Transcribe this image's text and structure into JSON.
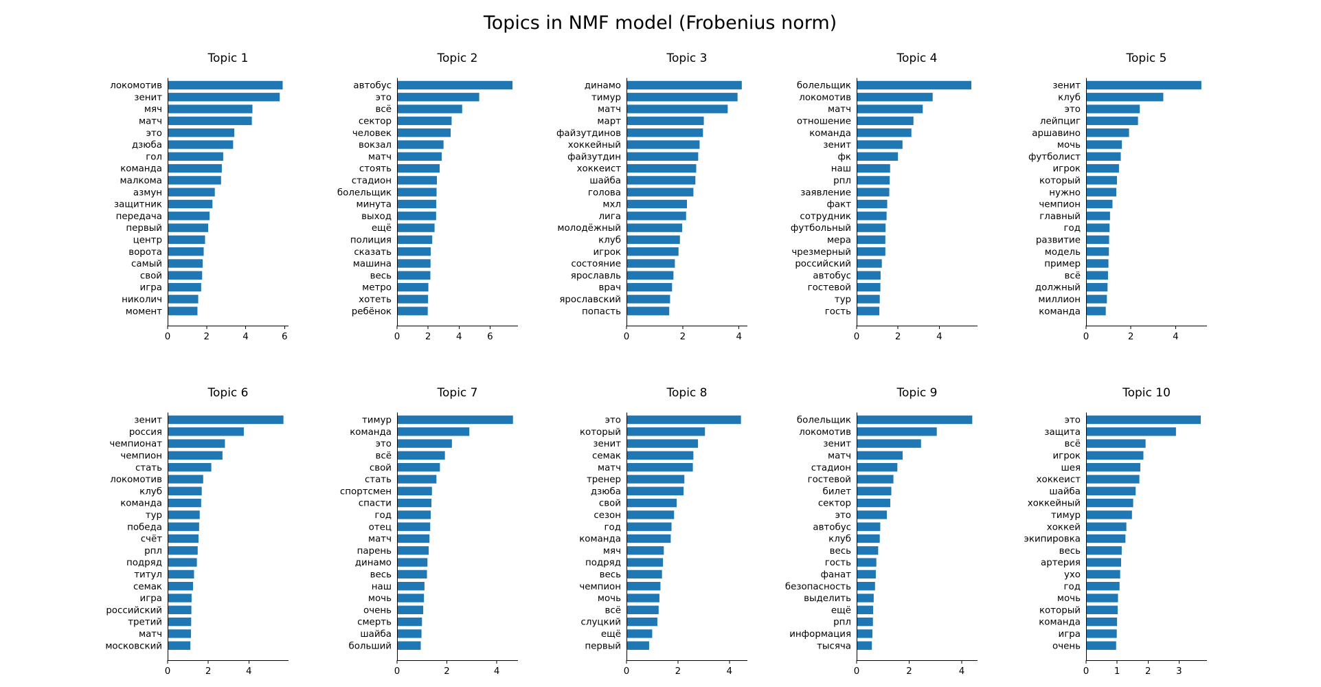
{
  "chart_data": {
    "title": "Topics in NMF model (Frobenius norm)",
    "type": "bar",
    "panels": [
      {
        "title": "Topic 1",
        "xticks": [
          0,
          2,
          4,
          6
        ],
        "xmax": 6.2,
        "words": [
          "локомотив",
          "зенит",
          "мяч",
          "матч",
          "это",
          "дзюба",
          "гол",
          "команда",
          "малкома",
          "азмун",
          "защитник",
          "передача",
          "первый",
          "центр",
          "ворота",
          "самый",
          "свой",
          "игра",
          "николич",
          "момент"
        ],
        "values": [
          5.9,
          5.75,
          4.35,
          4.32,
          3.42,
          3.36,
          2.85,
          2.78,
          2.74,
          2.42,
          2.3,
          2.15,
          2.08,
          1.92,
          1.85,
          1.8,
          1.77,
          1.72,
          1.57,
          1.53
        ]
      },
      {
        "title": "Topic 2",
        "xticks": [
          0,
          2,
          4,
          6
        ],
        "xmax": 7.8,
        "words": [
          "автобус",
          "это",
          "всё",
          "сектор",
          "человек",
          "вокзал",
          "матч",
          "стоять",
          "стадион",
          "болельщик",
          "минута",
          "выход",
          "ещё",
          "полиция",
          "сказать",
          "машина",
          "весь",
          "метро",
          "хотеть",
          "ребёнок"
        ],
        "values": [
          7.45,
          5.3,
          4.2,
          3.52,
          3.46,
          3.0,
          2.88,
          2.75,
          2.57,
          2.55,
          2.53,
          2.52,
          2.42,
          2.27,
          2.17,
          2.16,
          2.15,
          2.02,
          2.0,
          1.98
        ]
      },
      {
        "title": "Topic 3",
        "xticks": [
          0,
          2,
          4
        ],
        "xmax": 4.3,
        "words": [
          "динамо",
          "тимур",
          "матч",
          "март",
          "файзутдинов",
          "хоккейный",
          "файзутдин",
          "хоккеист",
          "шайба",
          "голова",
          "мхл",
          "лига",
          "молодёжный",
          "клуб",
          "игрок",
          "состояние",
          "ярославль",
          "врач",
          "ярославский",
          "попасть"
        ],
        "values": [
          4.1,
          3.95,
          3.6,
          2.75,
          2.72,
          2.6,
          2.55,
          2.48,
          2.45,
          2.38,
          2.15,
          2.12,
          1.98,
          1.9,
          1.85,
          1.72,
          1.67,
          1.62,
          1.55,
          1.52
        ]
      },
      {
        "title": "Topic 4",
        "xticks": [
          0,
          2,
          4
        ],
        "xmax": 5.85,
        "words": [
          "болельщик",
          "локомотив",
          "матч",
          "отношение",
          "команда",
          "зенит",
          "фк",
          "наш",
          "рпл",
          "заявление",
          "факт",
          "сотрудник",
          "футбольный",
          "мера",
          "чрезмерный",
          "российский",
          "автобус",
          "гостевой",
          "тур",
          "гость"
        ],
        "values": [
          5.55,
          3.68,
          3.2,
          2.75,
          2.65,
          2.22,
          2.0,
          1.62,
          1.6,
          1.58,
          1.48,
          1.45,
          1.4,
          1.39,
          1.39,
          1.22,
          1.16,
          1.15,
          1.12,
          1.1
        ]
      },
      {
        "title": "Topic 5",
        "xticks": [
          0,
          2,
          4
        ],
        "xmax": 5.4,
        "words": [
          "зенит",
          "клуб",
          "это",
          "лейпциг",
          "аршавино",
          "мочь",
          "футболист",
          "игрок",
          "который",
          "нужно",
          "чемпион",
          "главный",
          "год",
          "развитие",
          "модель",
          "пример",
          "всё",
          "должный",
          "миллион",
          "команда"
        ],
        "values": [
          5.15,
          3.45,
          2.4,
          2.32,
          1.92,
          1.6,
          1.55,
          1.47,
          1.38,
          1.35,
          1.18,
          1.07,
          1.05,
          1.03,
          1.02,
          1.0,
          0.98,
          0.96,
          0.93,
          0.88
        ]
      },
      {
        "title": "Topic 6",
        "xticks": [
          0,
          2,
          4
        ],
        "xmax": 5.95,
        "words": [
          "зенит",
          "россия",
          "чемпионат",
          "чемпион",
          "стать",
          "локомотив",
          "клуб",
          "команда",
          "тур",
          "победа",
          "счёт",
          "рпл",
          "подряд",
          "титул",
          "семак",
          "игра",
          "российский",
          "третий",
          "матч",
          "московский"
        ],
        "values": [
          5.7,
          3.75,
          2.82,
          2.7,
          2.15,
          1.75,
          1.68,
          1.65,
          1.58,
          1.55,
          1.52,
          1.48,
          1.44,
          1.3,
          1.25,
          1.18,
          1.17,
          1.16,
          1.15,
          1.12
        ]
      },
      {
        "title": "Topic 7",
        "xticks": [
          0,
          2,
          4
        ],
        "xmax": 4.85,
        "words": [
          "тимур",
          "команда",
          "это",
          "всё",
          "свой",
          "стать",
          "спортсмен",
          "спасти",
          "год",
          "отец",
          "матч",
          "парень",
          "динамо",
          "весь",
          "наш",
          "мочь",
          "очень",
          "смерть",
          "шайба",
          "больший"
        ],
        "values": [
          4.65,
          2.9,
          2.2,
          1.92,
          1.72,
          1.58,
          1.4,
          1.38,
          1.35,
          1.33,
          1.3,
          1.27,
          1.22,
          1.2,
          1.1,
          1.08,
          1.05,
          1.0,
          0.98,
          0.95
        ]
      },
      {
        "title": "Topic 8",
        "xticks": [
          0,
          2,
          4
        ],
        "xmax": 4.7,
        "words": [
          "это",
          "который",
          "зенит",
          "семак",
          "матч",
          "тренер",
          "дзюба",
          "свой",
          "сезон",
          "год",
          "команда",
          "мяч",
          "подряд",
          "весь",
          "чемпион",
          "мочь",
          "всё",
          "слуцкий",
          "ещё",
          "первый"
        ],
        "values": [
          4.45,
          3.05,
          2.78,
          2.6,
          2.58,
          2.25,
          2.22,
          1.95,
          1.85,
          1.75,
          1.72,
          1.45,
          1.42,
          1.38,
          1.32,
          1.28,
          1.25,
          1.2,
          1.0,
          0.88
        ]
      },
      {
        "title": "Topic 9",
        "xticks": [
          0,
          2,
          4
        ],
        "xmax": 4.6,
        "words": [
          "болельщик",
          "локомотив",
          "зенит",
          "матч",
          "стадион",
          "гостевой",
          "билет",
          "сектор",
          "это",
          "автобус",
          "клуб",
          "весь",
          "гость",
          "фанат",
          "безопасность",
          "выделить",
          "ещё",
          "рпл",
          "информация",
          "тысяча"
        ],
        "values": [
          4.4,
          3.05,
          2.45,
          1.75,
          1.55,
          1.4,
          1.32,
          1.28,
          1.15,
          0.9,
          0.88,
          0.82,
          0.75,
          0.73,
          0.7,
          0.65,
          0.63,
          0.62,
          0.6,
          0.58
        ]
      },
      {
        "title": "Topic 10",
        "xticks": [
          0,
          1,
          2,
          3
        ],
        "xmax": 3.9,
        "words": [
          "это",
          "защита",
          "всё",
          "игрок",
          "шея",
          "хоккеист",
          "шайба",
          "хоккейный",
          "тимур",
          "хоккей",
          "экипировка",
          "весь",
          "артерия",
          "ухо",
          "год",
          "мочь",
          "который",
          "команда",
          "игра",
          "очень"
        ],
        "values": [
          3.7,
          2.9,
          1.92,
          1.85,
          1.75,
          1.72,
          1.6,
          1.52,
          1.48,
          1.3,
          1.27,
          1.15,
          1.13,
          1.1,
          1.08,
          1.03,
          1.02,
          1.0,
          0.99,
          0.97
        ]
      }
    ]
  }
}
